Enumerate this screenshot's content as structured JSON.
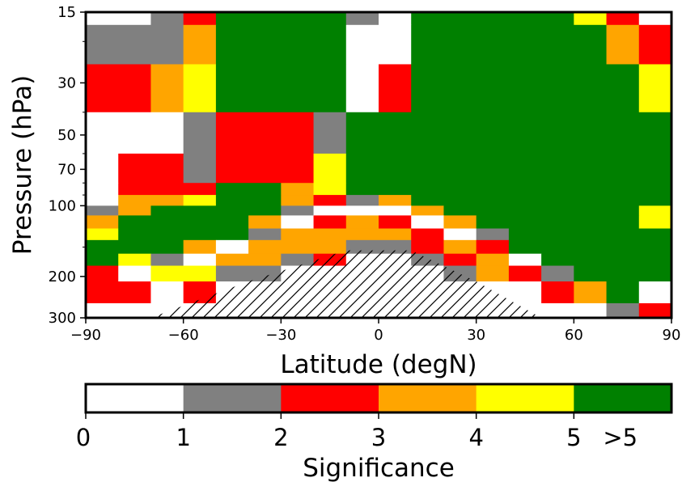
{
  "chart_data": {
    "type": "heatmap",
    "xlabel": "Latitude (degN)",
    "ylabel": "Pressure (hPa)",
    "xlim": [
      -90,
      90
    ],
    "ylim": [
      300,
      15
    ],
    "y_scale": "log",
    "x_ticks": [
      -90,
      -60,
      -30,
      0,
      30,
      60,
      90
    ],
    "x_tick_labels": [
      "−90",
      "−60",
      "−30",
      "0",
      "30",
      "60",
      "90"
    ],
    "y_ticks": [
      15,
      30,
      50,
      70,
      100,
      200,
      300
    ],
    "y_tick_labels": [
      "15",
      "30",
      "50",
      "70",
      "100",
      "200",
      "300"
    ],
    "colorbar": {
      "label": "Significance",
      "ticks": [
        "0",
        "1",
        "2",
        "3",
        "4",
        "5",
        ">5"
      ],
      "bins": [
        {
          "range": "0-1",
          "color": "#ffffff"
        },
        {
          "range": "1-2",
          "color": "#808080"
        },
        {
          "range": "2-3",
          "color": "#ff0000"
        },
        {
          "range": "3-4",
          "color": "#ffa500"
        },
        {
          "range": "4-5",
          "color": "#ffff00"
        },
        {
          "range": ">5",
          "color": "#008000"
        }
      ]
    },
    "legend": {
      "codes": {
        "W": "#ffffff",
        "G": "#808080",
        "R": "#ff0000",
        "O": "#ffa500",
        "Y": "#ffff00",
        "N": "#008000"
      }
    },
    "cells": [
      {
        "x": [
          -90,
          -70
        ],
        "y": [
          17,
          15
        ],
        "code": "W"
      },
      {
        "x": [
          -70,
          -60
        ],
        "y": [
          17,
          15
        ],
        "code": "G"
      },
      {
        "x": [
          -60,
          -50
        ],
        "y": [
          17,
          15
        ],
        "code": "R"
      },
      {
        "x": [
          -50,
          -10
        ],
        "y": [
          17,
          15
        ],
        "code": "N"
      },
      {
        "x": [
          -10,
          0
        ],
        "y": [
          17,
          15
        ],
        "code": "G"
      },
      {
        "x": [
          0,
          10
        ],
        "y": [
          17,
          15
        ],
        "code": "W"
      },
      {
        "x": [
          10,
          60
        ],
        "y": [
          17,
          15
        ],
        "code": "N"
      },
      {
        "x": [
          60,
          70
        ],
        "y": [
          17,
          15
        ],
        "code": "Y"
      },
      {
        "x": [
          70,
          80
        ],
        "y": [
          17,
          15
        ],
        "code": "R"
      },
      {
        "x": [
          80,
          90
        ],
        "y": [
          17,
          15
        ],
        "code": "W"
      },
      {
        "x": [
          -90,
          -60
        ],
        "y": [
          25,
          17
        ],
        "code": "G"
      },
      {
        "x": [
          -60,
          -50
        ],
        "y": [
          25,
          17
        ],
        "code": "O"
      },
      {
        "x": [
          -50,
          -10
        ],
        "y": [
          25,
          17
        ],
        "code": "N"
      },
      {
        "x": [
          -10,
          10
        ],
        "y": [
          25,
          17
        ],
        "code": "W"
      },
      {
        "x": [
          10,
          70
        ],
        "y": [
          25,
          17
        ],
        "code": "N"
      },
      {
        "x": [
          70,
          80
        ],
        "y": [
          25,
          17
        ],
        "code": "O"
      },
      {
        "x": [
          80,
          90
        ],
        "y": [
          25,
          17
        ],
        "code": "R"
      },
      {
        "x": [
          -90,
          -70
        ],
        "y": [
          40,
          25
        ],
        "code": "R"
      },
      {
        "x": [
          -70,
          -60
        ],
        "y": [
          40,
          25
        ],
        "code": "O"
      },
      {
        "x": [
          -60,
          -50
        ],
        "y": [
          40,
          25
        ],
        "code": "Y"
      },
      {
        "x": [
          -50,
          -10
        ],
        "y": [
          40,
          25
        ],
        "code": "N"
      },
      {
        "x": [
          -10,
          0
        ],
        "y": [
          40,
          25
        ],
        "code": "W"
      },
      {
        "x": [
          0,
          10
        ],
        "y": [
          40,
          25
        ],
        "code": "R"
      },
      {
        "x": [
          10,
          80
        ],
        "y": [
          40,
          25
        ],
        "code": "N"
      },
      {
        "x": [
          80,
          90
        ],
        "y": [
          40,
          25
        ],
        "code": "Y"
      },
      {
        "x": [
          -90,
          -60
        ],
        "y": [
          60,
          40
        ],
        "code": "W"
      },
      {
        "x": [
          -60,
          -50
        ],
        "y": [
          60,
          40
        ],
        "code": "G"
      },
      {
        "x": [
          -50,
          -20
        ],
        "y": [
          60,
          40
        ],
        "code": "R"
      },
      {
        "x": [
          -20,
          -10
        ],
        "y": [
          60,
          40
        ],
        "code": "G"
      },
      {
        "x": [
          -10,
          90
        ],
        "y": [
          60,
          40
        ],
        "code": "N"
      },
      {
        "x": [
          -90,
          -80
        ],
        "y": [
          80,
          60
        ],
        "code": "W"
      },
      {
        "x": [
          -80,
          -60
        ],
        "y": [
          80,
          60
        ],
        "code": "R"
      },
      {
        "x": [
          -60,
          -50
        ],
        "y": [
          80,
          60
        ],
        "code": "G"
      },
      {
        "x": [
          -50,
          -20
        ],
        "y": [
          80,
          60
        ],
        "code": "R"
      },
      {
        "x": [
          -20,
          -10
        ],
        "y": [
          80,
          60
        ],
        "code": "Y"
      },
      {
        "x": [
          -10,
          90
        ],
        "y": [
          80,
          60
        ],
        "code": "N"
      },
      {
        "x": [
          -90,
          -80
        ],
        "y": [
          90,
          80
        ],
        "code": "W"
      },
      {
        "x": [
          -80,
          -50
        ],
        "y": [
          90,
          80
        ],
        "code": "R"
      },
      {
        "x": [
          -50,
          -30
        ],
        "y": [
          90,
          80
        ],
        "code": "N"
      },
      {
        "x": [
          -30,
          -20
        ],
        "y": [
          90,
          80
        ],
        "code": "O"
      },
      {
        "x": [
          -20,
          -10
        ],
        "y": [
          90,
          80
        ],
        "code": "Y"
      },
      {
        "x": [
          -10,
          90
        ],
        "y": [
          90,
          80
        ],
        "code": "N"
      },
      {
        "x": [
          -90,
          -80
        ],
        "y": [
          100,
          90
        ],
        "code": "W"
      },
      {
        "x": [
          -80,
          -60
        ],
        "y": [
          100,
          90
        ],
        "code": "O"
      },
      {
        "x": [
          -60,
          -50
        ],
        "y": [
          100,
          90
        ],
        "code": "Y"
      },
      {
        "x": [
          -50,
          -30
        ],
        "y": [
          100,
          90
        ],
        "code": "N"
      },
      {
        "x": [
          -30,
          -20
        ],
        "y": [
          100,
          90
        ],
        "code": "O"
      },
      {
        "x": [
          -20,
          -10
        ],
        "y": [
          100,
          90
        ],
        "code": "R"
      },
      {
        "x": [
          -10,
          0
        ],
        "y": [
          100,
          90
        ],
        "code": "G"
      },
      {
        "x": [
          0,
          10
        ],
        "y": [
          100,
          90
        ],
        "code": "O"
      },
      {
        "x": [
          10,
          90
        ],
        "y": [
          100,
          90
        ],
        "code": "N"
      },
      {
        "x": [
          -90,
          -80
        ],
        "y": [
          110,
          100
        ],
        "code": "G"
      },
      {
        "x": [
          -80,
          -70
        ],
        "y": [
          110,
          100
        ],
        "code": "O"
      },
      {
        "x": [
          -70,
          -30
        ],
        "y": [
          110,
          100
        ],
        "code": "N"
      },
      {
        "x": [
          -30,
          -20
        ],
        "y": [
          110,
          100
        ],
        "code": "G"
      },
      {
        "x": [
          -20,
          10
        ],
        "y": [
          110,
          100
        ],
        "code": "W"
      },
      {
        "x": [
          10,
          20
        ],
        "y": [
          110,
          100
        ],
        "code": "O"
      },
      {
        "x": [
          20,
          80
        ],
        "y": [
          110,
          100
        ],
        "code": "N"
      },
      {
        "x": [
          80,
          90
        ],
        "y": [
          110,
          100
        ],
        "code": "Y"
      },
      {
        "x": [
          -90,
          -80
        ],
        "y": [
          125,
          110
        ],
        "code": "O"
      },
      {
        "x": [
          -80,
          -40
        ],
        "y": [
          125,
          110
        ],
        "code": "N"
      },
      {
        "x": [
          -40,
          -30
        ],
        "y": [
          125,
          110
        ],
        "code": "O"
      },
      {
        "x": [
          -30,
          -20
        ],
        "y": [
          125,
          110
        ],
        "code": "W"
      },
      {
        "x": [
          -20,
          -10
        ],
        "y": [
          125,
          110
        ],
        "code": "R"
      },
      {
        "x": [
          -10,
          0
        ],
        "y": [
          125,
          110
        ],
        "code": "O"
      },
      {
        "x": [
          0,
          10
        ],
        "y": [
          125,
          110
        ],
        "code": "R"
      },
      {
        "x": [
          10,
          20
        ],
        "y": [
          125,
          110
        ],
        "code": "W"
      },
      {
        "x": [
          20,
          30
        ],
        "y": [
          125,
          110
        ],
        "code": "O"
      },
      {
        "x": [
          30,
          80
        ],
        "y": [
          125,
          110
        ],
        "code": "N"
      },
      {
        "x": [
          80,
          90
        ],
        "y": [
          125,
          110
        ],
        "code": "Y"
      },
      {
        "x": [
          -90,
          -80
        ],
        "y": [
          140,
          125
        ],
        "code": "Y"
      },
      {
        "x": [
          -80,
          -40
        ],
        "y": [
          140,
          125
        ],
        "code": "N"
      },
      {
        "x": [
          -40,
          -30
        ],
        "y": [
          140,
          125
        ],
        "code": "G"
      },
      {
        "x": [
          -30,
          10
        ],
        "y": [
          140,
          125
        ],
        "code": "O"
      },
      {
        "x": [
          10,
          20
        ],
        "y": [
          140,
          125
        ],
        "code": "R"
      },
      {
        "x": [
          20,
          30
        ],
        "y": [
          140,
          125
        ],
        "code": "W"
      },
      {
        "x": [
          30,
          40
        ],
        "y": [
          140,
          125
        ],
        "code": "G"
      },
      {
        "x": [
          40,
          90
        ],
        "y": [
          140,
          125
        ],
        "code": "N"
      },
      {
        "x": [
          -90,
          -60
        ],
        "y": [
          160,
          140
        ],
        "code": "N"
      },
      {
        "x": [
          -60,
          -50
        ],
        "y": [
          160,
          140
        ],
        "code": "O"
      },
      {
        "x": [
          -50,
          -40
        ],
        "y": [
          160,
          140
        ],
        "code": "W"
      },
      {
        "x": [
          -40,
          -10
        ],
        "y": [
          160,
          140
        ],
        "code": "O"
      },
      {
        "x": [
          -10,
          10
        ],
        "y": [
          160,
          140
        ],
        "code": "G"
      },
      {
        "x": [
          10,
          20
        ],
        "y": [
          160,
          140
        ],
        "code": "R"
      },
      {
        "x": [
          20,
          30
        ],
        "y": [
          160,
          140
        ],
        "code": "O"
      },
      {
        "x": [
          30,
          40
        ],
        "y": [
          160,
          140
        ],
        "code": "R"
      },
      {
        "x": [
          40,
          90
        ],
        "y": [
          160,
          140
        ],
        "code": "N"
      },
      {
        "x": [
          -90,
          -80
        ],
        "y": [
          180,
          160
        ],
        "code": "N"
      },
      {
        "x": [
          -80,
          -70
        ],
        "y": [
          180,
          160
        ],
        "code": "Y"
      },
      {
        "x": [
          -70,
          -60
        ],
        "y": [
          180,
          160
        ],
        "code": "G"
      },
      {
        "x": [
          -60,
          -50
        ],
        "y": [
          180,
          160
        ],
        "code": "W"
      },
      {
        "x": [
          -50,
          -30
        ],
        "y": [
          180,
          160
        ],
        "code": "O"
      },
      {
        "x": [
          -30,
          -20
        ],
        "y": [
          180,
          160
        ],
        "code": "G"
      },
      {
        "x": [
          -20,
          -10
        ],
        "y": [
          180,
          160
        ],
        "code": "R"
      },
      {
        "x": [
          -10,
          10
        ],
        "y": [
          180,
          160
        ],
        "code": "W"
      },
      {
        "x": [
          10,
          20
        ],
        "y": [
          180,
          160
        ],
        "code": "G"
      },
      {
        "x": [
          20,
          30
        ],
        "y": [
          180,
          160
        ],
        "code": "R"
      },
      {
        "x": [
          30,
          40
        ],
        "y": [
          180,
          160
        ],
        "code": "O"
      },
      {
        "x": [
          40,
          50
        ],
        "y": [
          180,
          160
        ],
        "code": "W"
      },
      {
        "x": [
          50,
          90
        ],
        "y": [
          180,
          160
        ],
        "code": "N"
      },
      {
        "x": [
          -90,
          -80
        ],
        "y": [
          210,
          180
        ],
        "code": "R"
      },
      {
        "x": [
          -80,
          -70
        ],
        "y": [
          210,
          180
        ],
        "code": "W"
      },
      {
        "x": [
          -70,
          -50
        ],
        "y": [
          210,
          180
        ],
        "code": "Y"
      },
      {
        "x": [
          -50,
          -30
        ],
        "y": [
          210,
          180
        ],
        "code": "G"
      },
      {
        "x": [
          -30,
          20
        ],
        "y": [
          210,
          180
        ],
        "code": "W"
      },
      {
        "x": [
          20,
          30
        ],
        "y": [
          210,
          180
        ],
        "code": "G"
      },
      {
        "x": [
          30,
          40
        ],
        "y": [
          210,
          180
        ],
        "code": "O"
      },
      {
        "x": [
          40,
          50
        ],
        "y": [
          210,
          180
        ],
        "code": "R"
      },
      {
        "x": [
          50,
          60
        ],
        "y": [
          210,
          180
        ],
        "code": "G"
      },
      {
        "x": [
          60,
          90
        ],
        "y": [
          210,
          180
        ],
        "code": "N"
      },
      {
        "x": [
          -90,
          -70
        ],
        "y": [
          260,
          210
        ],
        "code": "R"
      },
      {
        "x": [
          -70,
          -60
        ],
        "y": [
          260,
          210
        ],
        "code": "W"
      },
      {
        "x": [
          -60,
          -50
        ],
        "y": [
          260,
          210
        ],
        "code": "R"
      },
      {
        "x": [
          -50,
          50
        ],
        "y": [
          260,
          210
        ],
        "code": "W"
      },
      {
        "x": [
          50,
          60
        ],
        "y": [
          260,
          210
        ],
        "code": "R"
      },
      {
        "x": [
          60,
          70
        ],
        "y": [
          260,
          210
        ],
        "code": "O"
      },
      {
        "x": [
          70,
          80
        ],
        "y": [
          260,
          210
        ],
        "code": "N"
      },
      {
        "x": [
          80,
          90
        ],
        "y": [
          260,
          210
        ],
        "code": "W"
      },
      {
        "x": [
          -90,
          70
        ],
        "y": [
          300,
          260
        ],
        "code": "W"
      },
      {
        "x": [
          70,
          80
        ],
        "y": [
          300,
          260
        ],
        "code": "G"
      },
      {
        "x": [
          80,
          90
        ],
        "y": [
          300,
          260
        ],
        "code": "R"
      }
    ],
    "hatched_region": [
      [
        -70,
        300
      ],
      [
        -40,
        210
      ],
      [
        -10,
        155
      ],
      [
        10,
        155
      ],
      [
        30,
        210
      ],
      [
        50,
        300
      ]
    ]
  }
}
